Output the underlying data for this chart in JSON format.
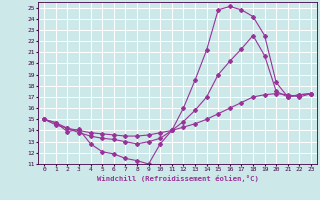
{
  "xlabel": "Windchill (Refroidissement éolien,°C)",
  "bg_color": "#cce8e8",
  "line_color": "#993399",
  "grid_color": "#ffffff",
  "xlim": [
    -0.5,
    23.5
  ],
  "ylim": [
    11,
    25.5
  ],
  "xticks": [
    0,
    1,
    2,
    3,
    4,
    5,
    6,
    7,
    8,
    9,
    10,
    11,
    12,
    13,
    14,
    15,
    16,
    17,
    18,
    19,
    20,
    21,
    22,
    23
  ],
  "yticks": [
    11,
    12,
    13,
    14,
    15,
    16,
    17,
    18,
    19,
    20,
    21,
    22,
    23,
    24,
    25
  ],
  "line1_x": [
    0,
    1,
    2,
    3,
    4,
    5,
    6,
    7,
    8,
    9,
    10,
    11,
    12,
    13,
    14,
    15,
    16,
    17,
    18,
    19,
    20,
    21,
    22,
    23
  ],
  "line1_y": [
    15.0,
    14.7,
    13.9,
    14.1,
    12.8,
    12.1,
    11.9,
    11.5,
    11.3,
    11.0,
    12.8,
    14.0,
    16.0,
    18.5,
    21.2,
    24.8,
    25.1,
    24.8,
    24.2,
    22.5,
    18.3,
    17.0,
    17.2,
    17.3
  ],
  "line2_x": [
    0,
    1,
    2,
    3,
    4,
    5,
    6,
    7,
    8,
    9,
    10,
    11,
    12,
    13,
    14,
    15,
    16,
    17,
    18,
    19,
    20,
    21,
    22,
    23
  ],
  "line2_y": [
    15.0,
    14.7,
    14.2,
    13.8,
    13.5,
    13.3,
    13.2,
    13.0,
    12.8,
    13.0,
    13.3,
    14.0,
    14.8,
    15.8,
    17.0,
    19.0,
    20.2,
    21.3,
    22.5,
    20.7,
    17.5,
    17.0,
    17.2,
    17.3
  ],
  "line3_x": [
    0,
    1,
    2,
    3,
    4,
    5,
    6,
    7,
    8,
    9,
    10,
    11,
    12,
    13,
    14,
    15,
    16,
    17,
    18,
    19,
    20,
    21,
    22,
    23
  ],
  "line3_y": [
    15.0,
    14.5,
    14.2,
    14.0,
    13.8,
    13.7,
    13.6,
    13.5,
    13.5,
    13.6,
    13.8,
    14.0,
    14.3,
    14.6,
    15.0,
    15.5,
    16.0,
    16.5,
    17.0,
    17.2,
    17.3,
    17.2,
    17.0,
    17.3
  ]
}
